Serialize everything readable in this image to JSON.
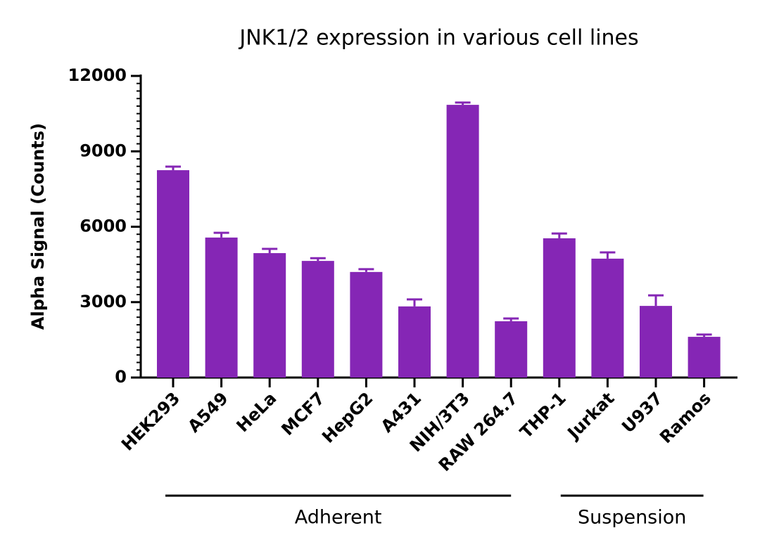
{
  "chart_data": {
    "type": "bar",
    "title": "JNK1/2 expression in various cell lines",
    "y_label": "Alpha Signal (Counts)",
    "categories": [
      "HEK293",
      "A549",
      "HeLa",
      "MCF7",
      "HepG2",
      "A431",
      "NIH/3T3",
      "RAW 264.7",
      "THP-1",
      "Jurkat",
      "U937",
      "Ramos"
    ],
    "values": [
      8250,
      5570,
      4950,
      4640,
      4200,
      2830,
      10850,
      2240,
      5540,
      4730,
      2850,
      1620
    ],
    "errors": [
      140,
      190,
      170,
      110,
      110,
      280,
      90,
      110,
      190,
      250,
      420,
      90
    ],
    "color": "#8526b5",
    "ylim": [
      0,
      12000
    ],
    "yticks": [
      0,
      3000,
      6000,
      9000,
      12000
    ],
    "groups": [
      {
        "label": "Adherent",
        "count": 8
      },
      {
        "label": "Suspension",
        "count": 4
      }
    ]
  }
}
